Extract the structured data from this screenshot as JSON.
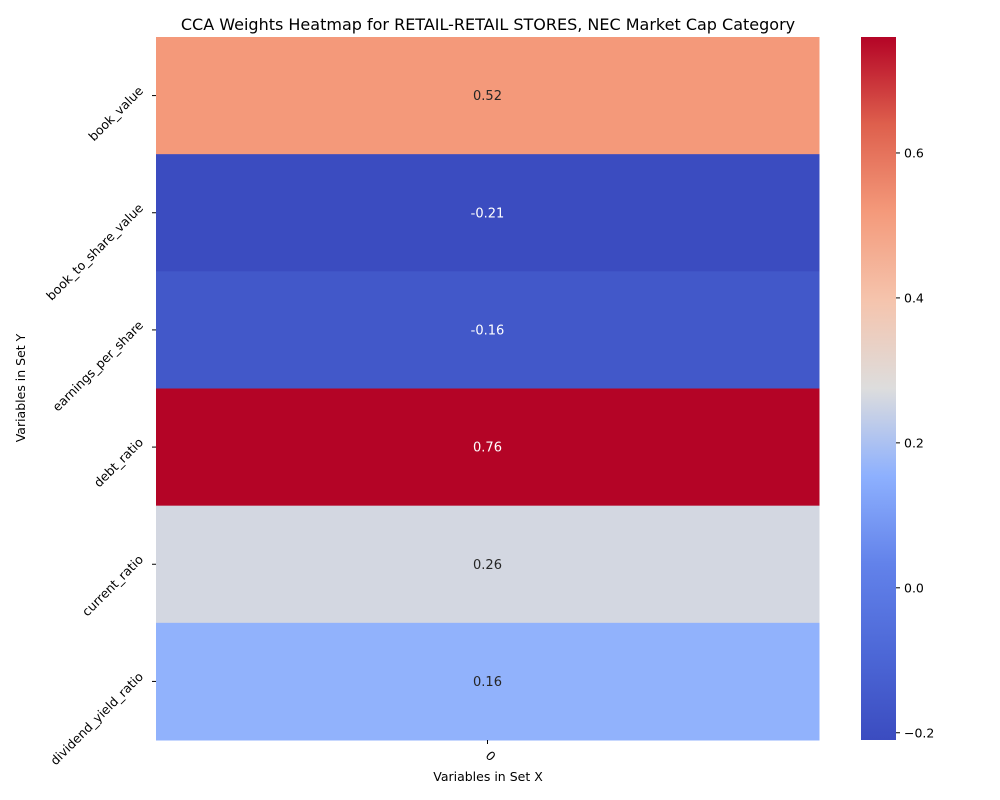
{
  "chart_data": {
    "type": "heatmap",
    "title": "CCA Weights Heatmap for RETAIL-RETAIL STORES, NEC Market Cap Category",
    "xlabel": "Variables in Set X",
    "ylabel": "Variables in Set Y",
    "x_categories": [
      "0"
    ],
    "y_categories": [
      "book_value",
      "book_to_share_value",
      "earnings_per_share",
      "debt_ratio",
      "current_ratio",
      "dividend_yield_ratio"
    ],
    "values": [
      [
        0.52
      ],
      [
        -0.21
      ],
      [
        -0.16
      ],
      [
        0.76
      ],
      [
        0.26
      ],
      [
        0.16
      ]
    ],
    "value_labels": [
      [
        "0.52"
      ],
      [
        "-0.21"
      ],
      [
        "-0.16"
      ],
      [
        "0.76"
      ],
      [
        "0.26"
      ],
      [
        "0.16"
      ]
    ],
    "colormap": "coolwarm",
    "vmin": -0.21,
    "vmax": 0.76,
    "colorbar_ticks": [
      -0.2,
      0.0,
      0.2,
      0.4,
      0.6
    ],
    "colorbar_tick_labels": [
      "−0.2",
      "0.0",
      "0.2",
      "0.4",
      "0.6"
    ]
  }
}
